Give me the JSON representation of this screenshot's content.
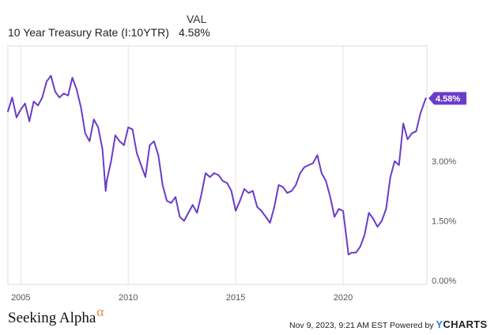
{
  "legend": {
    "header": "VAL",
    "series_name": "10 Year Treasury Rate (I:10YTR)",
    "series_value": "4.58%"
  },
  "chart_data": {
    "type": "line",
    "xlim": [
      2004.4,
      2023.9
    ],
    "ylim": [
      -0.1,
      5.9
    ],
    "x_ticks": [
      {
        "x": 2005,
        "label": "2005"
      },
      {
        "x": 2010,
        "label": "2010"
      },
      {
        "x": 2015,
        "label": "2015"
      },
      {
        "x": 2020,
        "label": "2020"
      }
    ],
    "y_ticks": [
      {
        "y": 0,
        "label": "0.00%"
      },
      {
        "y": 1.5,
        "label": "1.50%"
      },
      {
        "y": 3.0,
        "label": "3.00%"
      }
    ],
    "grid": "vertical",
    "line_color": "#6a3cc8",
    "last_value": {
      "y": 4.58,
      "label": "4.58%"
    },
    "series": [
      {
        "x": [
          2004.4,
          2004.6,
          2004.8,
          2005.0,
          2005.2,
          2005.4,
          2005.6,
          2005.8,
          2006.0,
          2006.2,
          2006.4,
          2006.6,
          2006.8,
          2007.0,
          2007.2,
          2007.4,
          2007.6,
          2007.8,
          2008.0,
          2008.2,
          2008.4,
          2008.6,
          2008.8,
          2008.95,
          2009.0,
          2009.2,
          2009.4,
          2009.6,
          2009.8,
          2010.0,
          2010.2,
          2010.4,
          2010.6,
          2010.8,
          2011.0,
          2011.2,
          2011.4,
          2011.6,
          2011.8,
          2012.0,
          2012.2,
          2012.4,
          2012.6,
          2012.8,
          2013.0,
          2013.2,
          2013.4,
          2013.6,
          2013.8,
          2014.0,
          2014.2,
          2014.4,
          2014.6,
          2014.8,
          2015.0,
          2015.2,
          2015.4,
          2015.6,
          2015.8,
          2016.0,
          2016.2,
          2016.4,
          2016.6,
          2016.8,
          2017.0,
          2017.2,
          2017.4,
          2017.6,
          2017.8,
          2018.0,
          2018.2,
          2018.4,
          2018.6,
          2018.8,
          2019.0,
          2019.2,
          2019.4,
          2019.6,
          2019.8,
          2020.0,
          2020.15,
          2020.25,
          2020.4,
          2020.6,
          2020.8,
          2021.0,
          2021.2,
          2021.4,
          2021.6,
          2021.8,
          2022.0,
          2022.2,
          2022.4,
          2022.6,
          2022.8,
          2023.0,
          2023.2,
          2023.4,
          2023.6,
          2023.85
        ],
        "y": [
          4.25,
          4.6,
          4.1,
          4.3,
          4.45,
          4.0,
          4.5,
          4.4,
          4.6,
          5.0,
          5.15,
          4.75,
          4.6,
          4.7,
          4.65,
          5.1,
          4.8,
          4.35,
          3.7,
          3.5,
          4.05,
          3.85,
          3.3,
          2.25,
          2.5,
          3.0,
          3.65,
          3.5,
          3.4,
          3.85,
          3.8,
          3.2,
          2.9,
          2.6,
          3.4,
          3.5,
          3.15,
          2.4,
          2.0,
          1.95,
          2.1,
          1.6,
          1.5,
          1.7,
          1.9,
          1.7,
          2.15,
          2.7,
          2.6,
          2.7,
          2.65,
          2.5,
          2.45,
          2.25,
          1.75,
          2.0,
          2.3,
          2.2,
          2.25,
          1.85,
          1.75,
          1.6,
          1.45,
          1.85,
          2.4,
          2.35,
          2.2,
          2.25,
          2.4,
          2.7,
          2.85,
          2.9,
          2.95,
          3.15,
          2.7,
          2.5,
          2.1,
          1.6,
          1.8,
          1.75,
          1.1,
          0.65,
          0.7,
          0.7,
          0.85,
          1.15,
          1.7,
          1.55,
          1.35,
          1.5,
          1.8,
          2.6,
          3.0,
          2.9,
          3.95,
          3.55,
          3.7,
          3.75,
          4.2,
          4.58
        ]
      }
    ]
  },
  "footer": {
    "brand": "Seeking Alpha",
    "brand_symbol": "α",
    "timestamp": "Nov 9, 2023, 9:21 AM EST Powered by",
    "ycharts_y": "Y",
    "ycharts_rest": "CHARTS"
  }
}
